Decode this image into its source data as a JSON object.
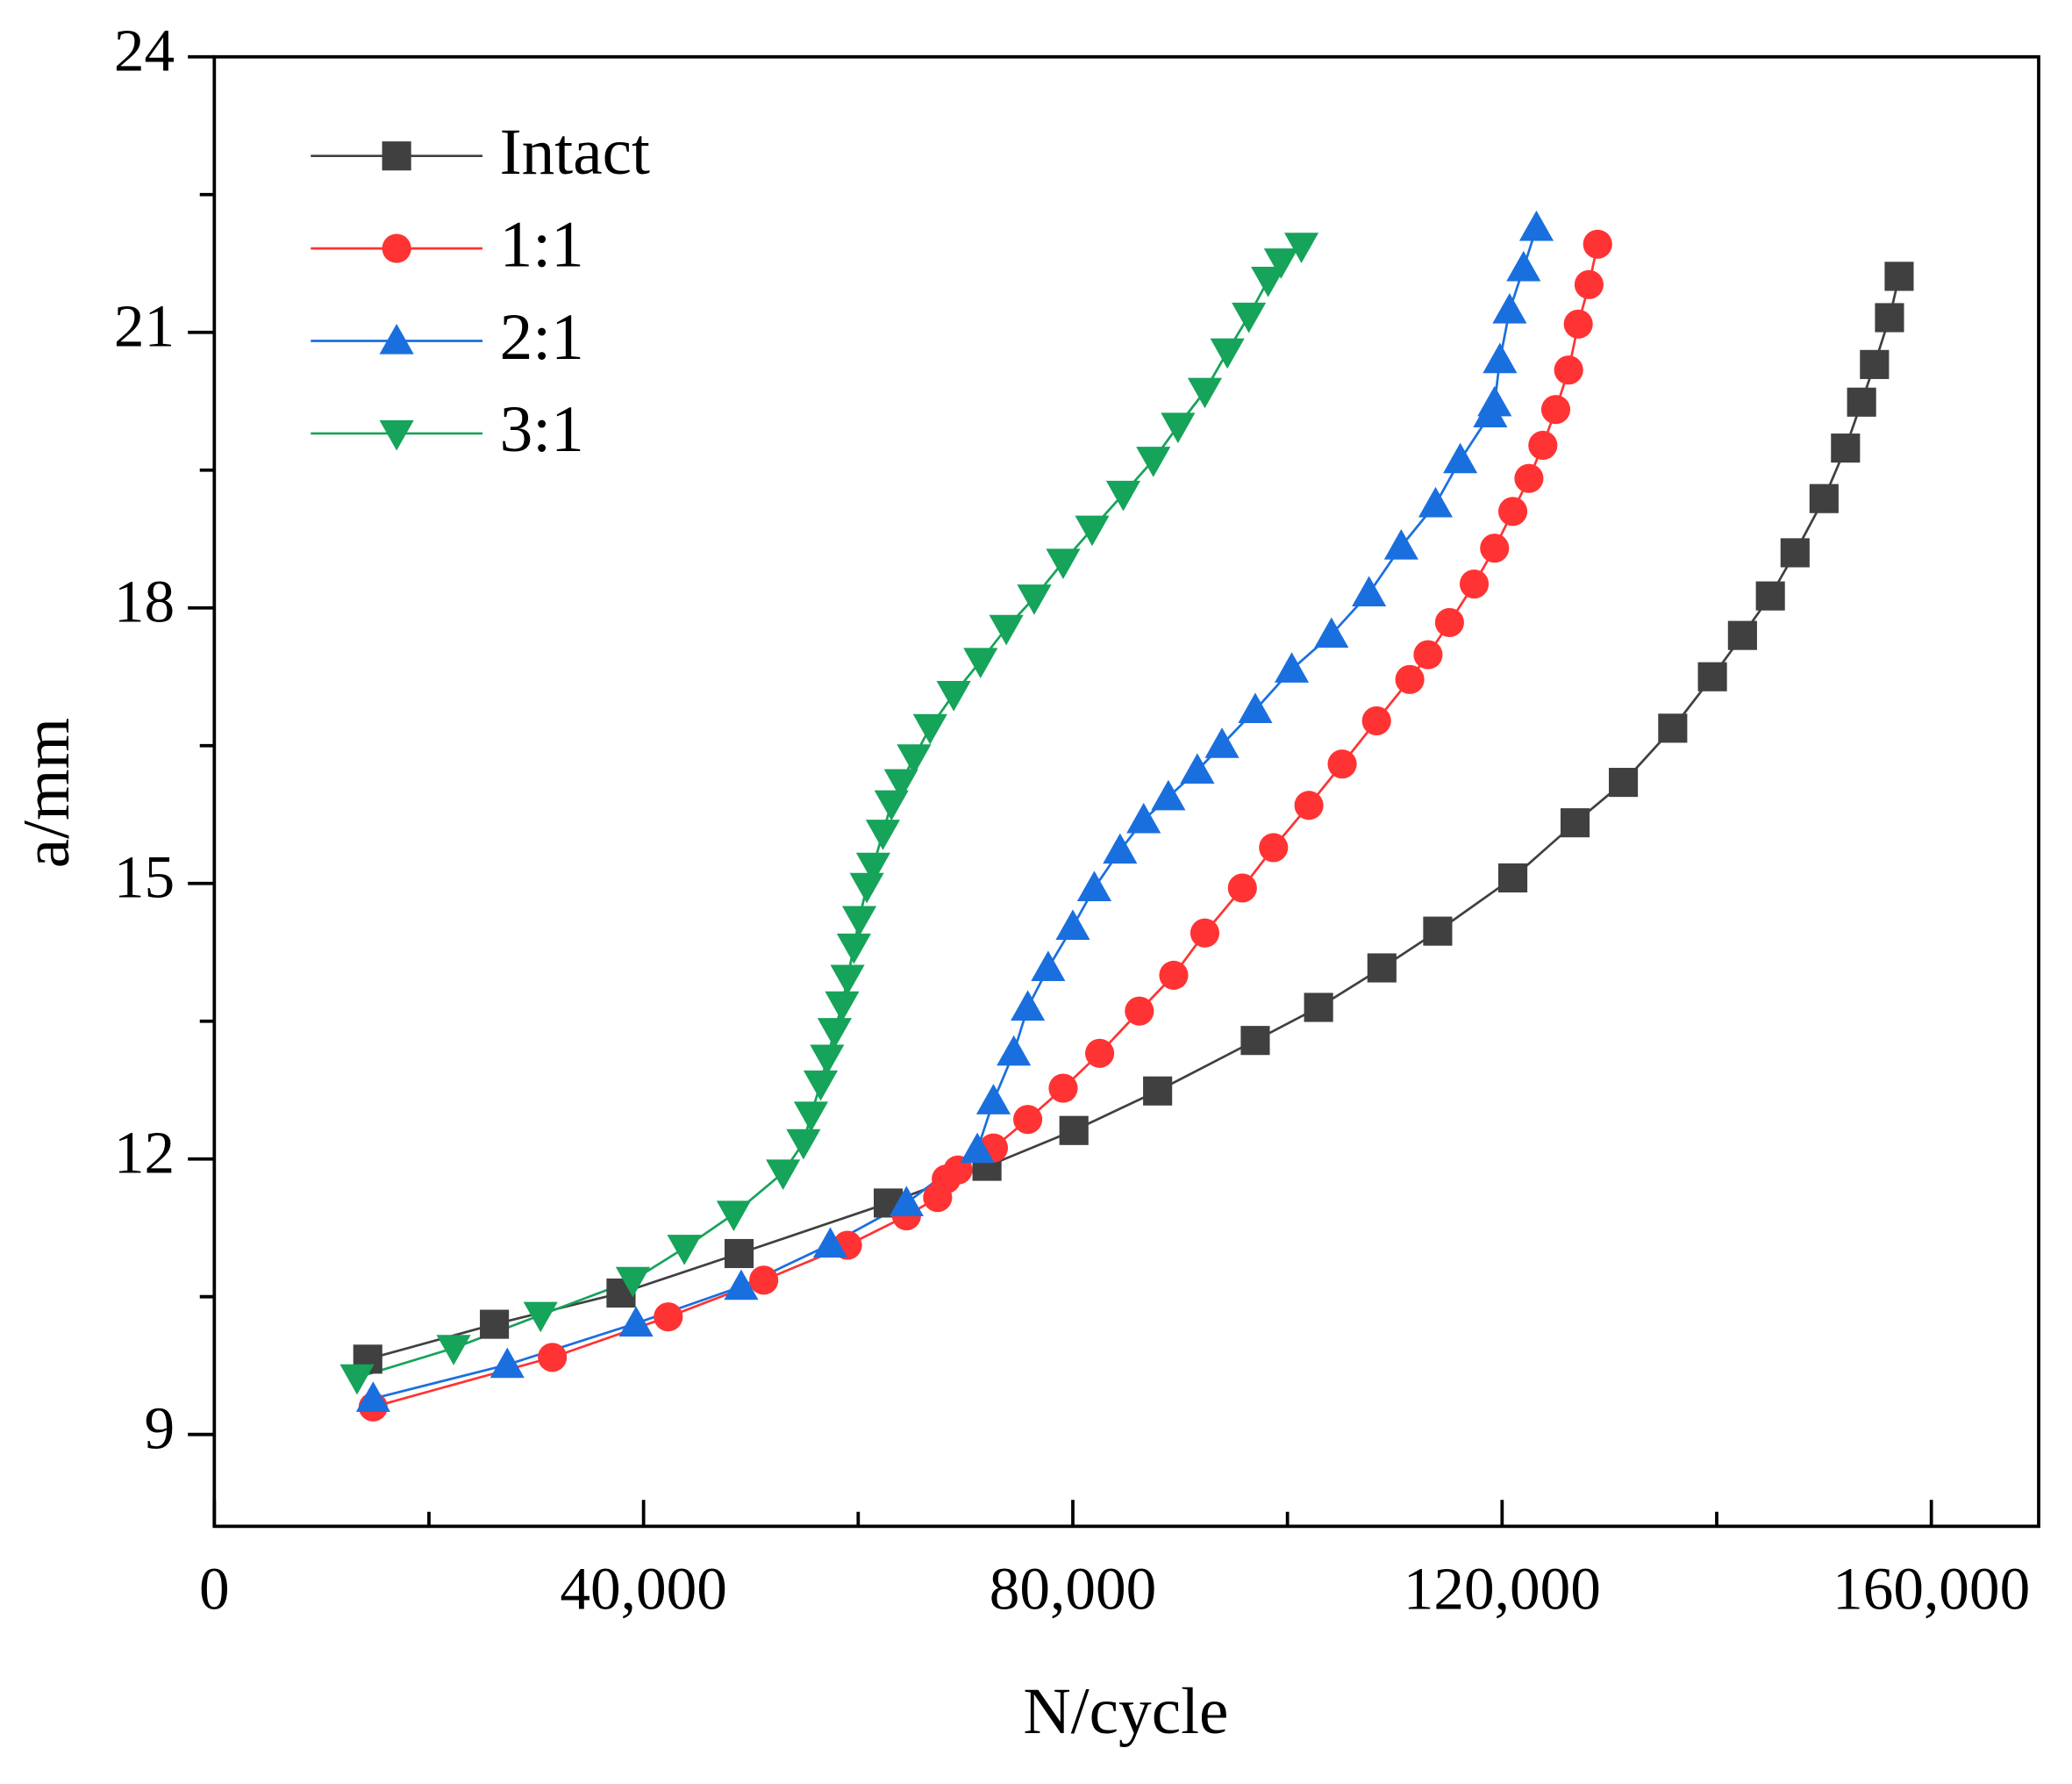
{
  "chart_data": {
    "type": "line",
    "x_label": "N/cycle",
    "y_label": "a/mm",
    "xlim": [
      0,
      170000
    ],
    "ylim": [
      8,
      24
    ],
    "xticks": [
      0,
      {
        "value": 40000,
        "label": "40,000"
      },
      {
        "value": 80000,
        "label": "80,000"
      },
      {
        "value": 120000,
        "label": "120,000"
      },
      {
        "value": 160000,
        "label": "160,000"
      }
    ],
    "xminorticks": [
      20000,
      60000,
      100000,
      140000
    ],
    "yticks": [
      9,
      12,
      15,
      18,
      21,
      24
    ],
    "yminorticks": [
      10.5,
      13.5,
      16.5,
      19.5,
      22.5
    ],
    "legend": "upper left",
    "series": [
      {
        "name": "Intact",
        "color": "#404040",
        "marker": "square",
        "x": [
          14300,
          26100,
          37900,
          48900,
          62800,
          72000,
          80100,
          87900,
          97000,
          102900,
          108800,
          114000,
          121000,
          126800,
          131300,
          135900,
          139600,
          142400,
          145000,
          147300,
          150000,
          152000,
          153500,
          154700,
          156100,
          157000
        ],
        "values": [
          9.82,
          10.2,
          10.54,
          10.97,
          11.52,
          11.92,
          12.31,
          12.74,
          13.29,
          13.65,
          14.08,
          14.48,
          15.06,
          15.66,
          16.1,
          16.69,
          17.25,
          17.7,
          18.13,
          18.6,
          19.19,
          19.74,
          20.24,
          20.65,
          21.16,
          21.61
        ]
      },
      {
        "name": "1:1",
        "color": "#ff3333",
        "marker": "circle",
        "x": [
          14800,
          31500,
          42300,
          51200,
          59000,
          64500,
          67400,
          68200,
          69300,
          72600,
          75800,
          79100,
          82500,
          86200,
          89400,
          92300,
          95800,
          98700,
          102000,
          105100,
          108300,
          111400,
          113100,
          115100,
          117400,
          119300,
          121000,
          122500,
          123800,
          125000,
          126200,
          127100,
          128100,
          128900
        ],
        "values": [
          9.3,
          9.84,
          10.28,
          10.68,
          11.06,
          11.38,
          11.58,
          11.78,
          11.88,
          12.12,
          12.43,
          12.77,
          13.15,
          13.61,
          14.0,
          14.46,
          14.95,
          15.39,
          15.85,
          16.3,
          16.77,
          17.22,
          17.49,
          17.84,
          18.26,
          18.65,
          19.05,
          19.41,
          19.77,
          20.16,
          20.59,
          21.09,
          21.52,
          21.96
        ]
      },
      {
        "name": "2:1",
        "color": "#1a6fdf",
        "marker": "triangle-up",
        "x": [
          14800,
          27300,
          39300,
          49100,
          57400,
          64500,
          71100,
          72600,
          74500,
          75800,
          77700,
          80000,
          82000,
          84400,
          86600,
          88900,
          91600,
          93900,
          97000,
          100400,
          104100,
          107600,
          110600,
          113800,
          116100,
          118900,
          119300,
          119800,
          120700,
          122000,
          123200
        ],
        "values": [
          9.39,
          9.76,
          10.21,
          10.61,
          11.07,
          11.52,
          12.1,
          12.63,
          13.16,
          13.65,
          14.08,
          14.53,
          14.95,
          15.36,
          15.69,
          15.94,
          16.23,
          16.51,
          16.89,
          17.33,
          17.71,
          18.16,
          18.67,
          19.13,
          19.61,
          20.11,
          20.23,
          20.7,
          21.24,
          21.7,
          22.14
        ]
      },
      {
        "name": "3:1",
        "color": "#16a35a",
        "marker": "triangle-down",
        "x": [
          13300,
          22300,
          30400,
          39000,
          43800,
          48400,
          53000,
          54900,
          55600,
          56500,
          57100,
          57800,
          58500,
          59000,
          59600,
          60100,
          60800,
          61400,
          62300,
          63100,
          64000,
          65200,
          66700,
          68900,
          71400,
          73800,
          76400,
          79100,
          81800,
          84700,
          87500,
          89800,
          92300,
          94400,
          96400,
          98200,
          99400,
          101300
        ],
        "values": [
          9.62,
          9.94,
          10.3,
          10.68,
          11.03,
          11.4,
          11.85,
          12.18,
          12.48,
          12.82,
          13.1,
          13.39,
          13.68,
          13.97,
          14.31,
          14.61,
          14.97,
          15.19,
          15.55,
          15.87,
          16.1,
          16.37,
          16.7,
          17.06,
          17.42,
          17.78,
          18.11,
          18.5,
          18.86,
          19.24,
          19.61,
          19.98,
          20.36,
          20.79,
          21.18,
          21.57,
          21.77,
          21.94
        ]
      }
    ]
  }
}
